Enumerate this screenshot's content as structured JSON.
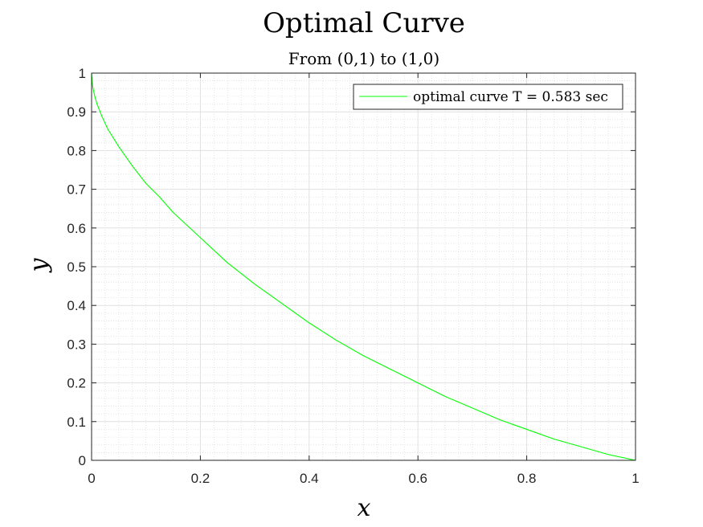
{
  "chart_data": {
    "type": "line",
    "title": "Optimal Curve",
    "subtitle": "From (0,1) to (1,0)",
    "xlabel": "x",
    "ylabel": "y",
    "xlim": [
      0,
      1
    ],
    "ylim": [
      0,
      1
    ],
    "xticks": [
      "0",
      "0.2",
      "0.4",
      "0.6",
      "0.8",
      "1"
    ],
    "yticks": [
      "0",
      "0.1",
      "0.2",
      "0.3",
      "0.4",
      "0.5",
      "0.6",
      "0.7",
      "0.8",
      "0.9",
      "1"
    ],
    "grid": "major and minor",
    "legend": {
      "location": "top-right",
      "entries": [
        "optimal curve T = 0.583 sec"
      ]
    },
    "series": [
      {
        "name": "optimal curve T = 0.583 sec",
        "color": "#00ff00",
        "x": [
          0,
          0.002,
          0.005,
          0.01,
          0.02,
          0.03,
          0.05,
          0.075,
          0.1,
          0.125,
          0.15,
          0.2,
          0.25,
          0.3,
          0.35,
          0.4,
          0.45,
          0.5,
          0.55,
          0.6,
          0.65,
          0.7,
          0.75,
          0.8,
          0.85,
          0.9,
          0.95,
          1.0
        ],
        "y": [
          1.0,
          0.965,
          0.945,
          0.92,
          0.885,
          0.855,
          0.81,
          0.76,
          0.715,
          0.68,
          0.64,
          0.575,
          0.51,
          0.455,
          0.405,
          0.355,
          0.31,
          0.27,
          0.235,
          0.2,
          0.165,
          0.135,
          0.105,
          0.08,
          0.055,
          0.035,
          0.015,
          0.0
        ]
      }
    ]
  }
}
